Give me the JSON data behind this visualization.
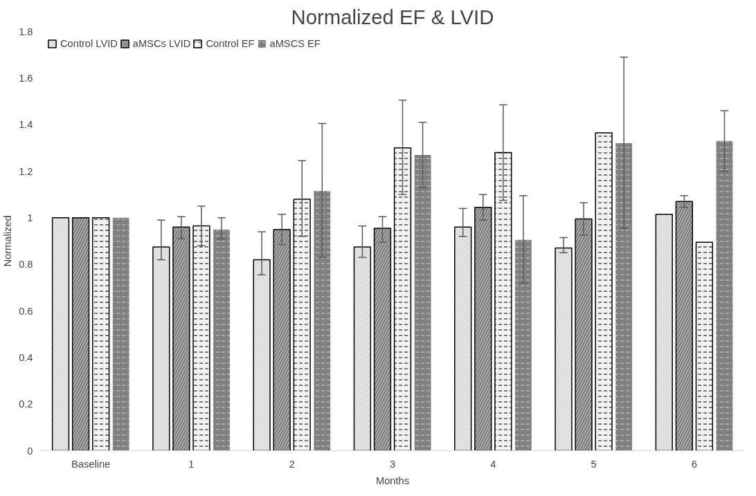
{
  "chart_data": {
    "type": "bar",
    "title": "Normalized EF & LVID",
    "xlabel": "Months",
    "ylabel": "Normalized",
    "categories": [
      "Baseline",
      "1",
      "2",
      "3",
      "4",
      "5",
      "6"
    ],
    "ylim": [
      0,
      1.8
    ],
    "yticks": [
      0,
      0.2,
      0.4,
      0.6,
      0.8,
      1,
      1.2,
      1.4,
      1.6,
      1.8
    ],
    "grid": false,
    "legend": "top left",
    "series": [
      {
        "name": "Control LVID",
        "color": "#d9d9d9",
        "values": [
          1,
          0.875,
          0.82,
          0.875,
          0.96,
          0.87,
          1.015
        ],
        "errors": [
          null,
          [
            0.82,
            0.99
          ],
          [
            0.755,
            0.94
          ],
          [
            0.83,
            0.965
          ],
          [
            0.92,
            1.04
          ],
          [
            0.85,
            0.915
          ],
          null
        ]
      },
      {
        "name": "aMSCs LVID",
        "color": "#a6a6a6",
        "values": [
          1,
          0.96,
          0.95,
          0.955,
          1.045,
          0.995,
          1.07
        ],
        "errors": [
          null,
          [
            0.91,
            1.005
          ],
          [
            0.885,
            1.015
          ],
          [
            0.895,
            1.005
          ],
          [
            0.99,
            1.1
          ],
          [
            0.925,
            1.065
          ],
          [
            1.045,
            1.095
          ]
        ]
      },
      {
        "name": "Control EF",
        "color": "#f2f2f2",
        "values": [
          1,
          0.965,
          1.08,
          1.3,
          1.28,
          1.365,
          0.895
        ],
        "errors": [
          null,
          [
            0.88,
            1.05
          ],
          [
            0.92,
            1.245
          ],
          [
            1.1,
            1.505
          ],
          [
            1.075,
            1.485
          ],
          null,
          null
        ]
      },
      {
        "name": "aMSCS EF",
        "color": "#808080",
        "values": [
          1,
          0.95,
          1.115,
          1.27,
          0.905,
          1.32,
          1.33
        ],
        "errors": [
          null,
          [
            0.91,
            1.0
          ],
          [
            0.83,
            1.405
          ],
          [
            1.13,
            1.41
          ],
          [
            0.72,
            1.095
          ],
          [
            0.955,
            1.69
          ],
          [
            1.2,
            1.46
          ]
        ]
      }
    ]
  }
}
